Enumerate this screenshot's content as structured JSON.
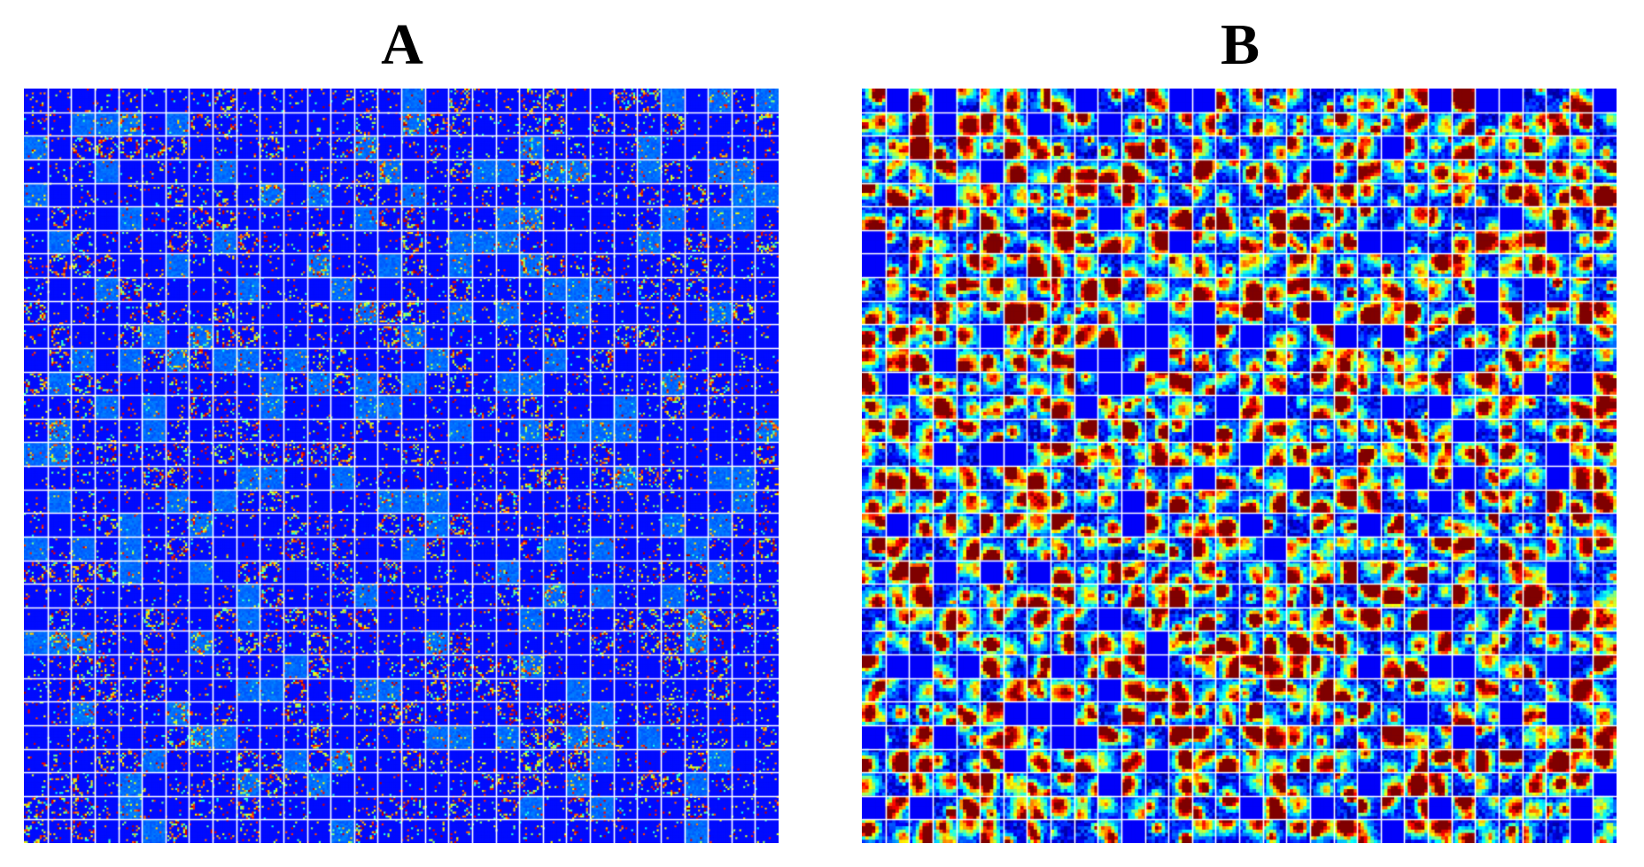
{
  "figure": {
    "panels": [
      {
        "id": "A",
        "label": "A",
        "description_kind": "fine-grained sparse filter mosaic",
        "grid": {
          "rows": 32,
          "cols": 32
        },
        "pixels_per_tile": 12,
        "pattern": "sparse-fine"
      },
      {
        "id": "B",
        "label": "B",
        "description_kind": "coarse blob filter mosaic",
        "grid": {
          "rows": 32,
          "cols": 32
        },
        "pixels_per_tile": 7,
        "pattern": "blobby-coarse"
      }
    ],
    "colormap": "jet",
    "grid_line_color": "#ffffff",
    "background_color": "#00008f"
  }
}
